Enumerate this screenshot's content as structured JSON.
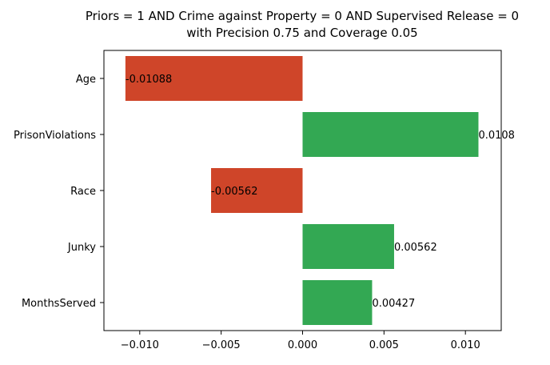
{
  "chart_data": {
    "type": "bar",
    "orientation": "horizontal",
    "title": "Priors = 1 AND Crime against Property = 0 AND Supervised Release = 0",
    "subtitle": "with Precision 0.75 and Coverage 0.05",
    "xlabel": "",
    "ylabel": "",
    "categories": [
      "Age",
      "PrisonViolations",
      "Race",
      "Junky",
      "MonthsServed"
    ],
    "values": [
      -0.01088,
      0.0108,
      -0.00562,
      0.00562,
      0.00427
    ],
    "value_labels": [
      "-0.01088",
      "0.0108",
      "-0.00562",
      "0.00562",
      "0.00427"
    ],
    "xlim": [
      -0.0122,
      0.0122
    ],
    "xticks": [
      -0.01,
      -0.005,
      0.0,
      0.005,
      0.01
    ],
    "xtick_labels": [
      "−0.010",
      "−0.005",
      "0.000",
      "0.005",
      "0.010"
    ],
    "colors": {
      "negative": "#cf4529",
      "positive": "#33a853"
    },
    "grid": false,
    "legend": "none"
  }
}
